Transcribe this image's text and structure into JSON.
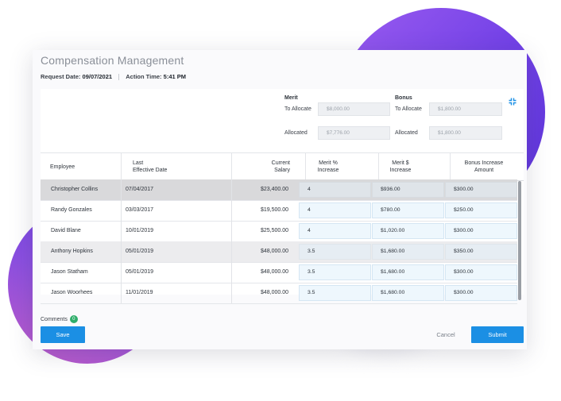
{
  "header": {
    "title": "Compensation Management",
    "request_date_label": "Request Date:",
    "request_date": "09/07/2021",
    "action_time_label": "Action Time:",
    "action_time": "5:41 PM"
  },
  "allocation": {
    "merit": {
      "heading": "Merit",
      "to_allocate_label": "To Allocate",
      "to_allocate_value": "$8,000.00",
      "allocated_label": "Allocated",
      "allocated_value": "$7,776.00"
    },
    "bonus": {
      "heading": "Bonus",
      "to_allocate_label": "To Allocate",
      "to_allocate_value": "$1,800.00",
      "allocated_label": "Allocated",
      "allocated_value": "$1,800.00"
    },
    "collapse_icon": "collapse-arrows-icon"
  },
  "table": {
    "columns": {
      "employee": "Employee",
      "last_effective_date_1": "Last",
      "last_effective_date_2": "Effective Date",
      "current_salary_1": "Current",
      "current_salary_2": "Salary",
      "merit_pct_1": "Merit %",
      "merit_pct_2": "Increase",
      "merit_amt_1": "Merit $",
      "merit_amt_2": "Increase",
      "bonus_1": "Bonus Increase",
      "bonus_2": "Amount"
    },
    "rows": [
      {
        "employee": "Christopher Collins",
        "date": "07/04/2017",
        "salary": "$23,400.00",
        "merit_pct": "4",
        "merit_amt": "$936.00",
        "bonus": "$300.00"
      },
      {
        "employee": "Randy Gonzales",
        "date": "03/03/2017",
        "salary": "$19,500.00",
        "merit_pct": "4",
        "merit_amt": "$780.00",
        "bonus": "$250.00"
      },
      {
        "employee": "David Blane",
        "date": "10/01/2019",
        "salary": "$25,500.00",
        "merit_pct": "4",
        "merit_amt": "$1,020.00",
        "bonus": "$300.00"
      },
      {
        "employee": "Anthony Hopkins",
        "date": "05/01/2019",
        "salary": "$48,000.00",
        "merit_pct": "3.5",
        "merit_amt": "$1,680.00",
        "bonus": "$350.00"
      },
      {
        "employee": "Jason Statham",
        "date": "05/01/2019",
        "salary": "$48,000.00",
        "merit_pct": "3.5",
        "merit_amt": "$1,680.00",
        "bonus": "$300.00"
      },
      {
        "employee": "Jason Woorhees",
        "date": "11/01/2019",
        "salary": "$48,000.00",
        "merit_pct": "3.5",
        "merit_amt": "$1,680.00",
        "bonus": "$300.00"
      }
    ]
  },
  "footer": {
    "comments_label": "Comments",
    "comments_count": "0",
    "save_label": "Save",
    "cancel_label": "Cancel",
    "submit_label": "Submit"
  },
  "colors": {
    "primary": "#1b8fe4",
    "badge": "#2fae6b",
    "accent_purple": "#6f3fe6"
  }
}
